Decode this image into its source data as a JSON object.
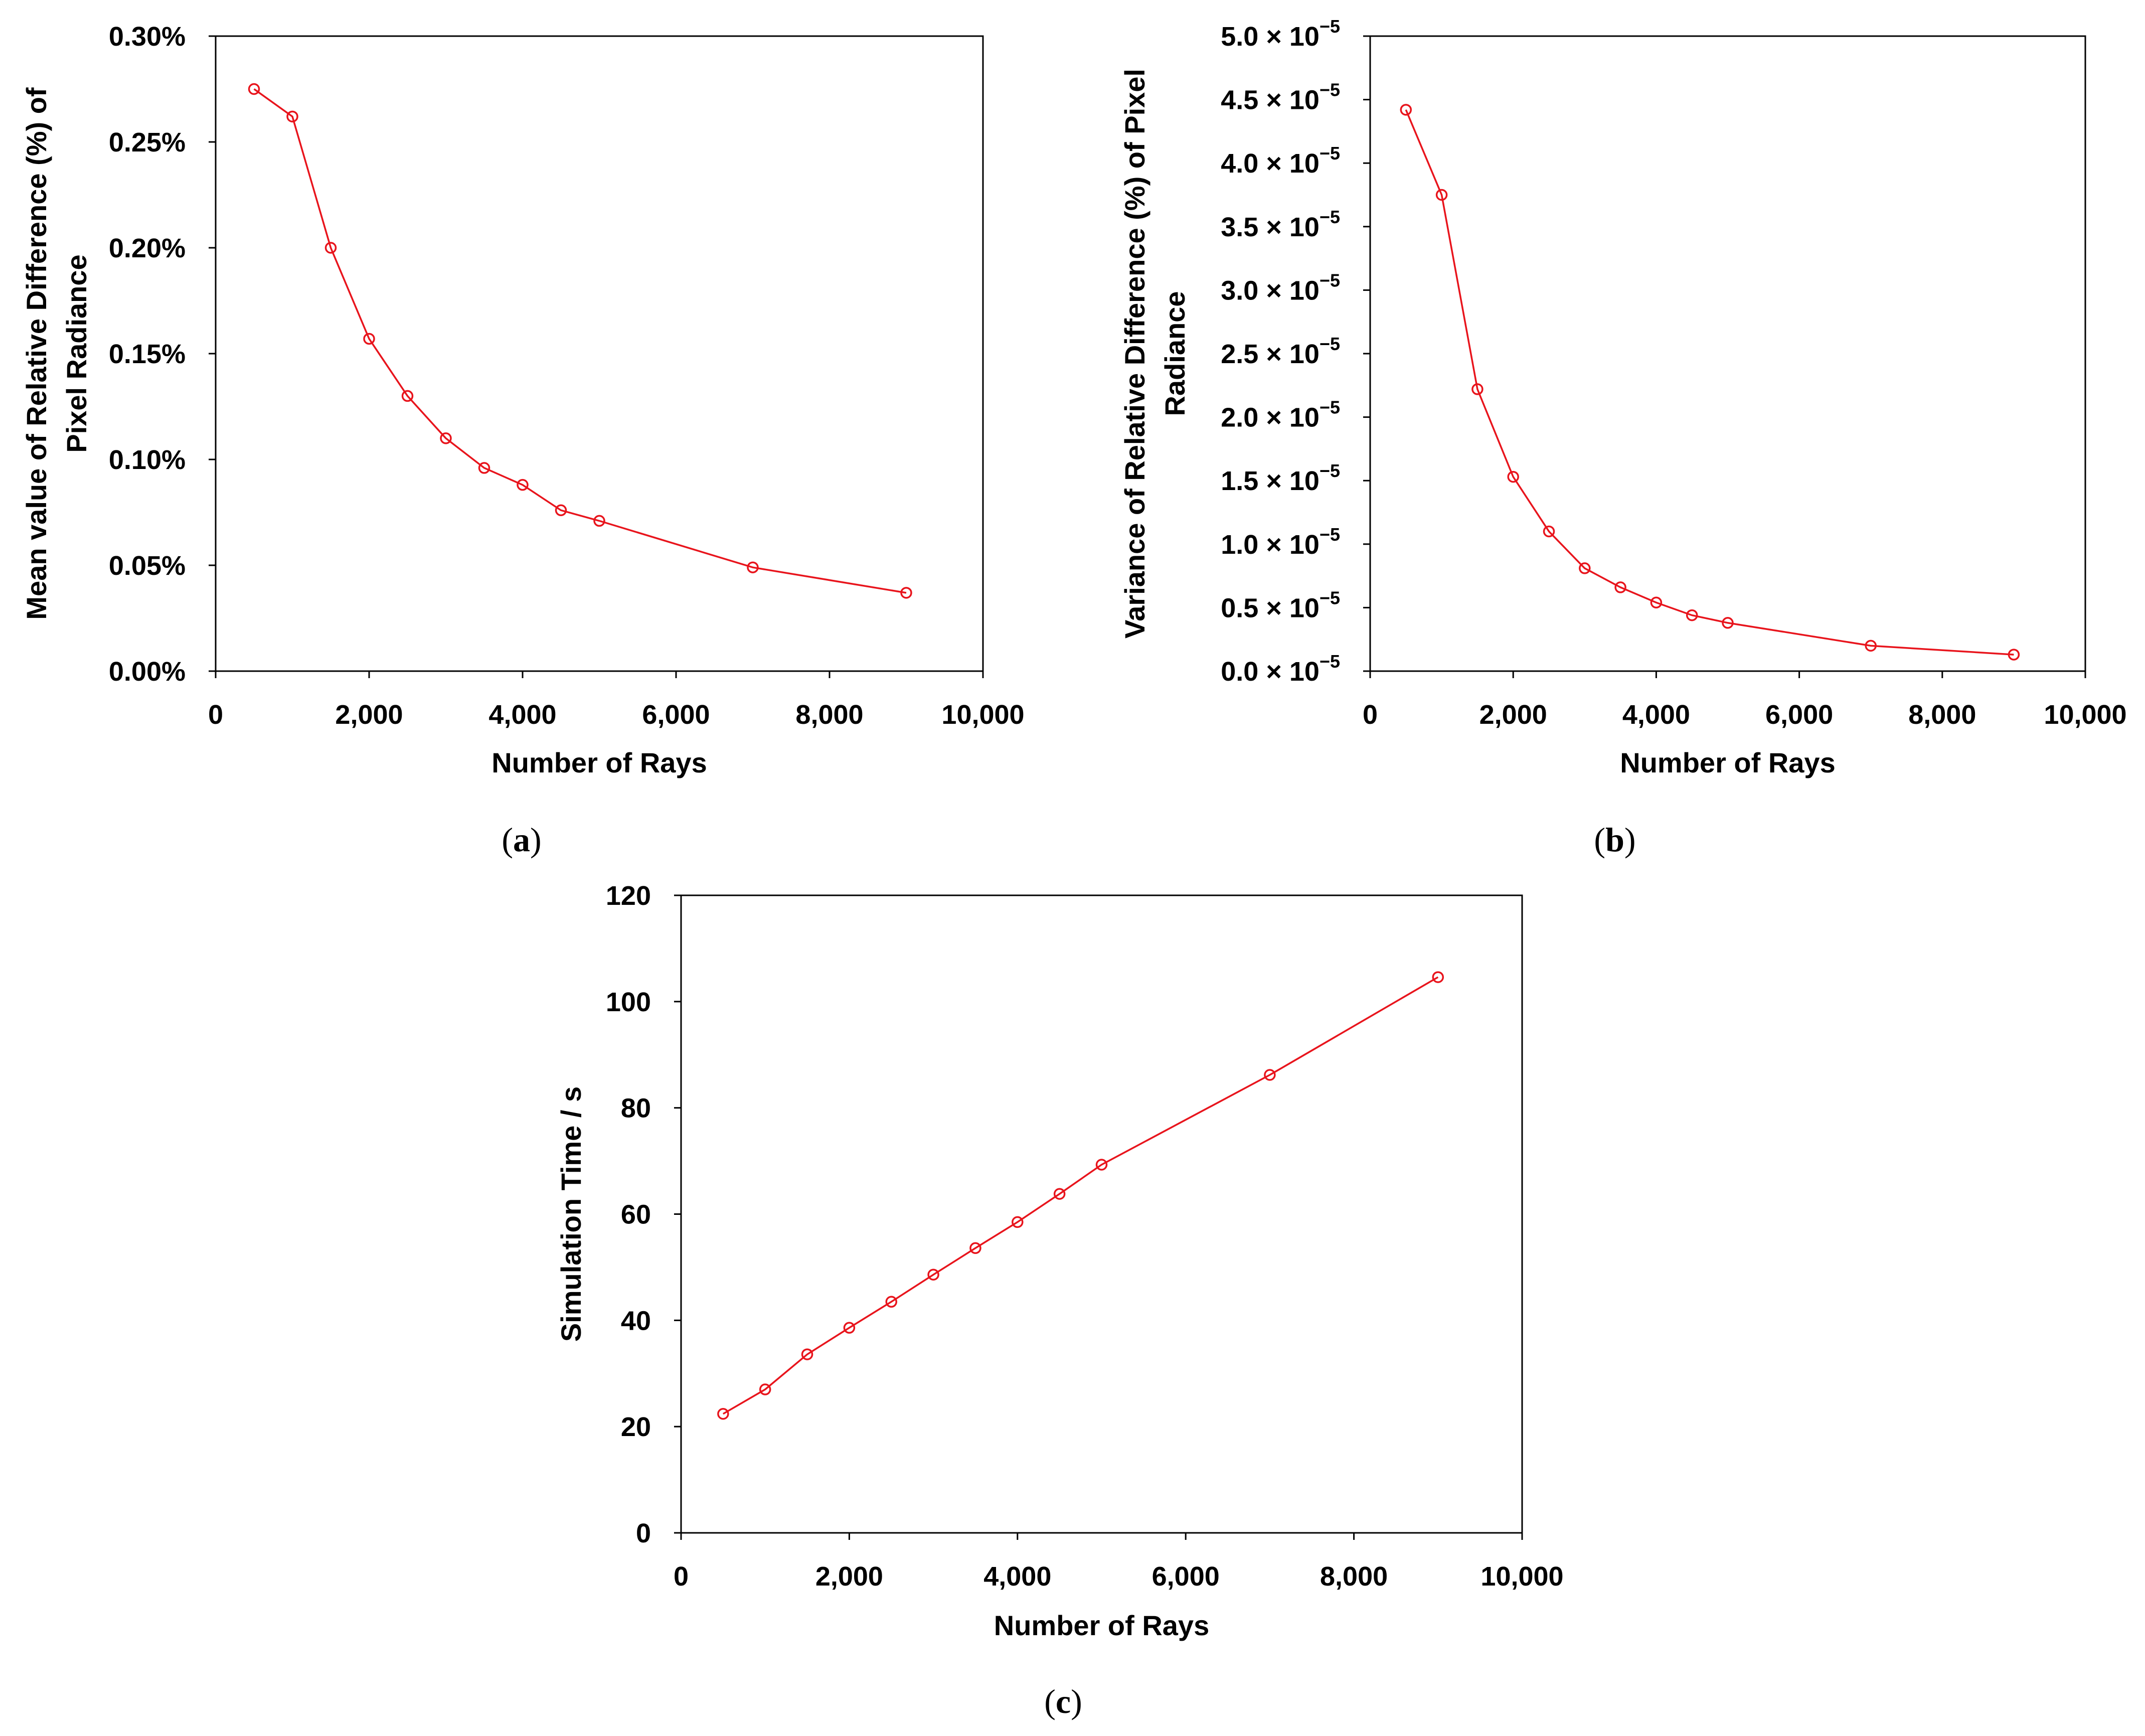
{
  "chart_data": [
    {
      "id": "a",
      "type": "line",
      "caption": "(a)",
      "xlabel": "Number of Rays",
      "ylabel": [
        "Mean value of Relative Difference (%) of",
        "Pixel Radiance"
      ],
      "xlim": [
        0,
        10000
      ],
      "ylim": [
        0,
        0.3
      ],
      "x_ticks": [
        0,
        2000,
        4000,
        6000,
        8000,
        10000
      ],
      "x_tick_labels": [
        "0",
        "2,000",
        "4,000",
        "6,000",
        "8,000",
        "10,000"
      ],
      "y_ticks": [
        0,
        0.05,
        0.1,
        0.15,
        0.2,
        0.25,
        0.3
      ],
      "y_tick_labels": [
        "0.00%",
        "0.05%",
        "0.10%",
        "0.15%",
        "0.20%",
        "0.25%",
        "0.30%"
      ],
      "series": [
        {
          "name": "mean-relative-difference",
          "color": "#e8141c",
          "x": [
            500,
            1000,
            1500,
            2000,
            2500,
            3000,
            3500,
            4000,
            4500,
            5000,
            7000,
            9000
          ],
          "y": [
            0.275,
            0.262,
            0.2,
            0.157,
            0.13,
            0.11,
            0.096,
            0.088,
            0.076,
            0.071,
            0.049,
            0.037
          ]
        }
      ]
    },
    {
      "id": "b",
      "type": "line",
      "caption": "(b)",
      "xlabel": "Number of Rays",
      "ylabel": [
        "Variance of Relative Difference (%) of Pixel",
        "Radiance"
      ],
      "xlim": [
        0,
        10000
      ],
      "ylim": [
        0,
        5.0
      ],
      "y_unit_exponent": "−5",
      "x_ticks": [
        0,
        2000,
        4000,
        6000,
        8000,
        10000
      ],
      "x_tick_labels": [
        "0",
        "2,000",
        "4,000",
        "6,000",
        "8,000",
        "10,000"
      ],
      "y_ticks": [
        0,
        0.5,
        1.0,
        1.5,
        2.0,
        2.5,
        3.0,
        3.5,
        4.0,
        4.5,
        5.0
      ],
      "y_tick_labels": [
        "0.0 × 10",
        "0.5 × 10",
        "1.0 × 10",
        "1.5 × 10",
        "2.0 × 10",
        "2.5 × 10",
        "3.0 × 10",
        "3.5 × 10",
        "4.0 × 10",
        "4.5 × 10",
        "5.0 × 10"
      ],
      "series": [
        {
          "name": "variance-relative-difference",
          "color": "#e8141c",
          "x": [
            500,
            1000,
            1500,
            2000,
            2500,
            3000,
            3500,
            4000,
            4500,
            5000,
            7000,
            9000
          ],
          "y": [
            4.42,
            3.75,
            2.22,
            1.53,
            1.1,
            0.81,
            0.66,
            0.54,
            0.44,
            0.38,
            0.2,
            0.13
          ]
        }
      ]
    },
    {
      "id": "c",
      "type": "line",
      "caption": "(c)",
      "xlabel": "Number of Rays",
      "ylabel": [
        "Simulation Time / s"
      ],
      "xlim": [
        0,
        10000
      ],
      "ylim": [
        0,
        120
      ],
      "x_ticks": [
        0,
        2000,
        4000,
        6000,
        8000,
        10000
      ],
      "x_tick_labels": [
        "0",
        "2,000",
        "4,000",
        "6,000",
        "8,000",
        "10,000"
      ],
      "y_ticks": [
        0,
        20,
        40,
        60,
        80,
        100,
        120
      ],
      "y_tick_labels": [
        "0",
        "20",
        "40",
        "60",
        "80",
        "100",
        "120"
      ],
      "series": [
        {
          "name": "simulation-time",
          "color": "#e8141c",
          "x": [
            500,
            1000,
            1500,
            2000,
            2500,
            3000,
            3500,
            4000,
            4500,
            5000,
            7000,
            9000
          ],
          "y": [
            22.4,
            27.0,
            33.6,
            38.6,
            43.5,
            48.6,
            53.6,
            58.5,
            63.8,
            69.3,
            86.2,
            104.6
          ]
        }
      ]
    }
  ]
}
